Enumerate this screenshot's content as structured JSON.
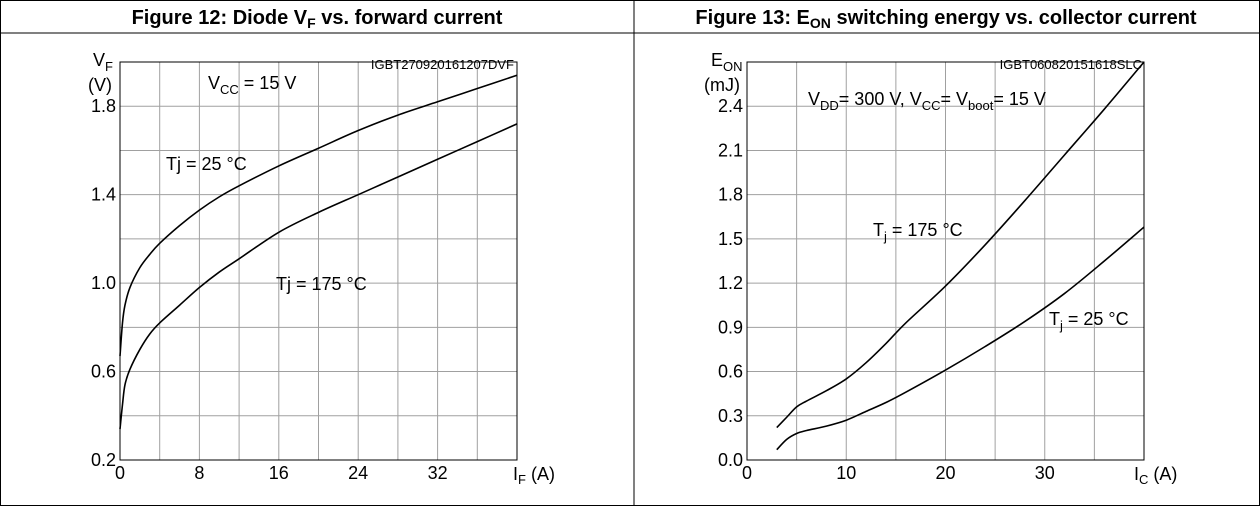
{
  "figures": [
    {
      "title_main": "Figure 12: Diode V",
      "title_sub": "F",
      "title_rest": " vs. forward current",
      "doc_code": "IGBT270920161207DVF",
      "y_sym": "V",
      "y_sub": "F",
      "y_unit": "(V)",
      "x_sym": "I",
      "x_sub": "F",
      "x_unit": " (A)",
      "condition": {
        "a": "V",
        "a_sub": "CC",
        "b": " = 15 V"
      },
      "labels": [
        {
          "text": "Tj = 25 °C"
        },
        {
          "text": "Tj = 175 °C"
        }
      ]
    },
    {
      "title_main": "Figure 13: E",
      "title_sub": "ON",
      "title_rest": " switching energy vs. collector current",
      "doc_code": "IGBT060820151618SLC",
      "y_sym": "E",
      "y_sub": "ON",
      "y_unit": "(mJ)",
      "x_sym": "I",
      "x_sub": "C",
      "x_unit": " (A)",
      "condition": {
        "a": "V",
        "a_sub": "DD",
        "b": "= 300 V, V",
        "b_sub": "CC",
        "c": "= V",
        "c_sub": "boot",
        "d": "= 15 V"
      },
      "labels": [
        {
          "t": "T",
          "t_sub": "j",
          "rest": " = 175 °C"
        },
        {
          "t": "T",
          "t_sub": "j",
          "rest": " = 25 °C"
        }
      ]
    }
  ],
  "chart_data": [
    {
      "type": "line",
      "title": "Figure 12: Diode VF vs. forward current",
      "xlabel": "IF (A)",
      "ylabel": "VF (V)",
      "xlim": [
        0,
        40
      ],
      "ylim": [
        0.2,
        2.0
      ],
      "xticks": [
        0,
        8,
        16,
        24,
        32
      ],
      "yticks": [
        0.2,
        0.6,
        1.0,
        1.4,
        1.8
      ],
      "grid": true,
      "series": [
        {
          "name": "Tj = 25 °C",
          "x": [
            0,
            0.25,
            0.5,
            1,
            2,
            3,
            4,
            6,
            8,
            10,
            12,
            16,
            20,
            24,
            28,
            32,
            36,
            40
          ],
          "y": [
            0.67,
            0.82,
            0.9,
            0.98,
            1.07,
            1.13,
            1.18,
            1.26,
            1.33,
            1.39,
            1.44,
            1.53,
            1.61,
            1.69,
            1.76,
            1.82,
            1.88,
            1.94
          ]
        },
        {
          "name": "Tj = 175 °C",
          "x": [
            0,
            0.25,
            0.5,
            1,
            2,
            3,
            4,
            6,
            8,
            10,
            12,
            16,
            20,
            24,
            28,
            32,
            36,
            40
          ],
          "y": [
            0.34,
            0.45,
            0.54,
            0.61,
            0.7,
            0.77,
            0.82,
            0.9,
            0.98,
            1.05,
            1.11,
            1.23,
            1.32,
            1.4,
            1.48,
            1.56,
            1.64,
            1.72
          ]
        }
      ]
    },
    {
      "type": "line",
      "title": "Figure 13: EON switching energy vs. collector current",
      "xlabel": "IC (A)",
      "ylabel": "EON (mJ)",
      "xlim": [
        0,
        40
      ],
      "ylim": [
        0,
        2.7
      ],
      "xticks": [
        0,
        10,
        20,
        30
      ],
      "yticks": [
        0.0,
        0.3,
        0.6,
        0.9,
        1.2,
        1.5,
        1.8,
        2.1,
        2.4
      ],
      "grid": true,
      "series": [
        {
          "name": "Tj = 175 °C",
          "x": [
            3,
            4,
            5,
            6,
            8,
            10,
            12,
            14,
            16,
            20,
            24,
            28,
            32,
            36,
            40
          ],
          "y": [
            0.22,
            0.29,
            0.36,
            0.4,
            0.47,
            0.55,
            0.66,
            0.79,
            0.93,
            1.18,
            1.46,
            1.76,
            2.07,
            2.38,
            2.7
          ]
        },
        {
          "name": "Tj = 25 °C",
          "x": [
            3,
            4,
            5,
            6,
            8,
            10,
            12,
            14,
            16,
            20,
            24,
            28,
            32,
            36,
            40
          ],
          "y": [
            0.07,
            0.14,
            0.18,
            0.2,
            0.23,
            0.27,
            0.33,
            0.39,
            0.46,
            0.61,
            0.77,
            0.94,
            1.13,
            1.35,
            1.58
          ]
        }
      ]
    }
  ]
}
